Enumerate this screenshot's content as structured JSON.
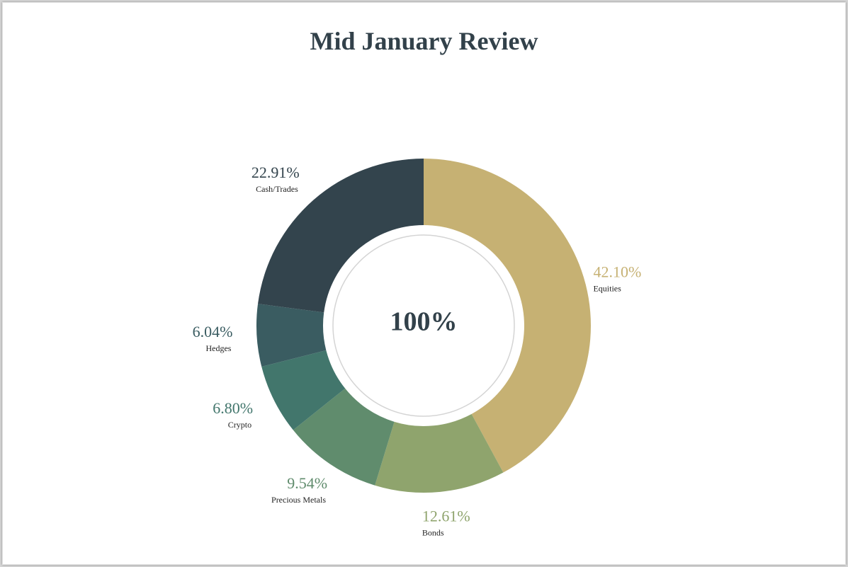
{
  "chart_data": {
    "type": "pie",
    "variant": "donut",
    "title": "Mid January Review",
    "center_label": "100%",
    "categories": [
      "Equities",
      "Bonds",
      "Precious Metals",
      "Crypto",
      "Hedges",
      "Cash/Trades"
    ],
    "values": [
      42.1,
      12.61,
      9.54,
      6.8,
      6.04,
      22.91
    ],
    "value_labels": [
      "42.10%",
      "12.61%",
      "9.54%",
      "6.80%",
      "6.04%",
      "22.91%"
    ],
    "colors": [
      "#c6b173",
      "#8fa46d",
      "#608c6d",
      "#42766c",
      "#3a5c61",
      "#33444d"
    ],
    "start": "top",
    "direction": "clockwise"
  }
}
